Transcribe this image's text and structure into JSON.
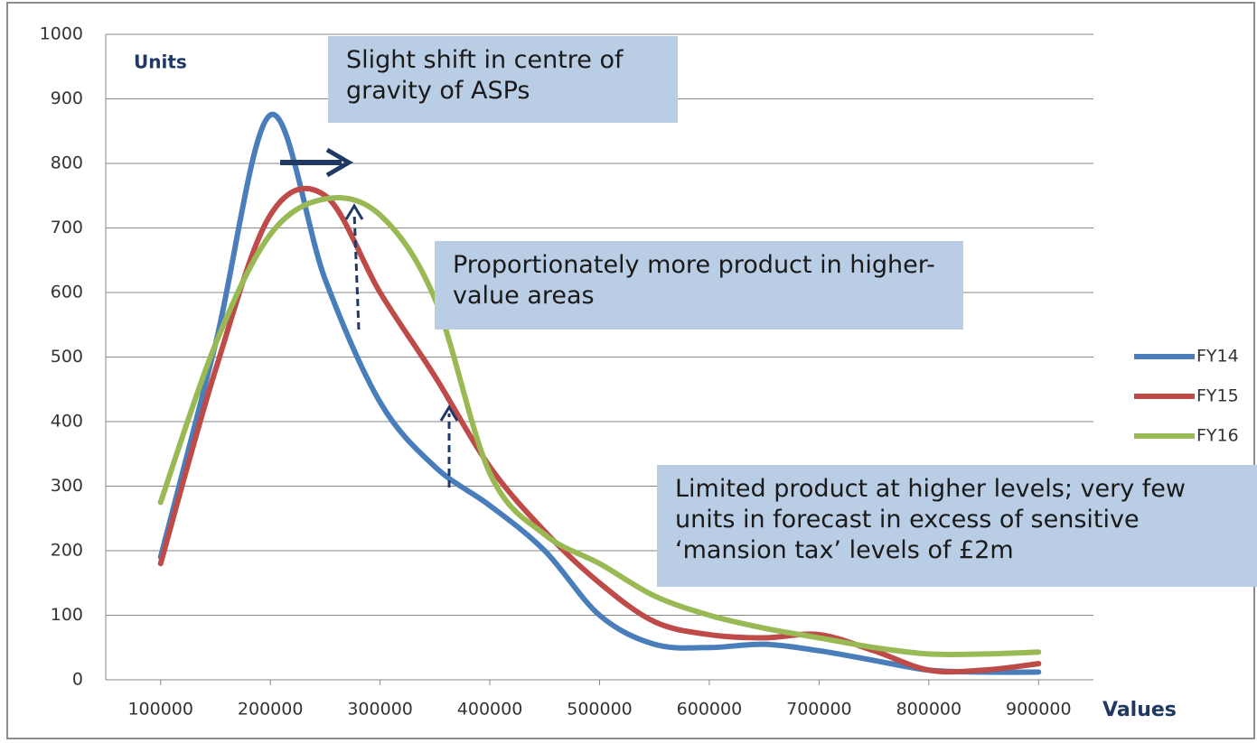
{
  "chart_data": {
    "type": "line",
    "smooth": true,
    "y_label": "Units",
    "x_label": "Values",
    "x": [
      100000,
      150000,
      200000,
      250000,
      300000,
      350000,
      400000,
      450000,
      500000,
      550000,
      600000,
      650000,
      700000,
      750000,
      800000,
      850000,
      900000
    ],
    "xlim": [
      50000,
      950000
    ],
    "xticks": [
      100000,
      200000,
      300000,
      400000,
      500000,
      600000,
      700000,
      800000,
      900000
    ],
    "ylim": [
      0,
      1000
    ],
    "yticks": [
      0,
      100,
      200,
      300,
      400,
      500,
      600,
      700,
      800,
      900,
      1000
    ],
    "grid": true,
    "legend": "right",
    "series": [
      {
        "name": "FY14",
        "color": "#4a7ebb",
        "values": [
          190,
          520,
          875,
          620,
          430,
          330,
          270,
          200,
          100,
          55,
          50,
          55,
          45,
          30,
          15,
          12,
          12
        ]
      },
      {
        "name": "FY15",
        "color": "#be4b48",
        "values": [
          180,
          480,
          720,
          750,
          600,
          470,
          330,
          230,
          150,
          90,
          70,
          65,
          70,
          45,
          15,
          15,
          25
        ]
      },
      {
        "name": "FY16",
        "color": "#98b954",
        "values": [
          275,
          520,
          690,
          745,
          720,
          590,
          320,
          225,
          180,
          130,
          100,
          80,
          65,
          50,
          40,
          40,
          43
        ]
      }
    ],
    "annotations": [
      "Slight shift in centre of gravity of ASPs",
      "Proportionately more product in higher-value areas",
      "Limited product at higher levels; very few units in forecast in excess of sensitive ‘mansion tax’ levels of £2m"
    ]
  }
}
